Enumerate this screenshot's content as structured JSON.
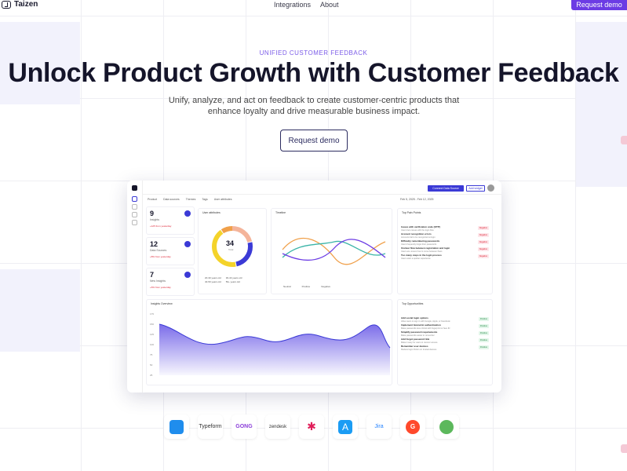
{
  "nav": {
    "brand": "Taizen",
    "links": [
      "Integrations",
      "About"
    ],
    "cta": "Request demo"
  },
  "hero": {
    "eyebrow": "UNIFIED CUSTOMER FEEDBACK",
    "title": "Unlock Product Growth with Customer Feedback",
    "subtitle": "Unify, analyze, and act on feedback to create customer-centric products that enhance loyalty and drive measurable business impact.",
    "cta": "Request demo"
  },
  "dashboard": {
    "connect_label": "Connect Data Source",
    "add_widget_label": "Add widget",
    "filters": [
      "Product",
      "Data sources",
      "Themes",
      "Tags",
      "User attributes"
    ],
    "date_range": "Feb 5, 2025 - Feb 12, 2025",
    "stats": [
      {
        "value": "9",
        "label": "Insights",
        "delta": "+125 from yesterday"
      },
      {
        "value": "12",
        "label": "Data Sources",
        "delta": "+8% from yesterday"
      },
      {
        "value": "7",
        "label": "New Insights",
        "delta": "+6% from yesterday"
      }
    ],
    "user_attributes": {
      "title": "User attributes",
      "center_value": "34",
      "center_label": "Total",
      "legend": [
        "20-30 years old",
        "30-40 years old",
        "40-50 years old",
        "50+ years old"
      ]
    },
    "timeline": {
      "title": "Timeline",
      "legend": [
        "Neutral",
        "Positive",
        "Negative"
      ]
    },
    "pain_points": {
      "title": "Top Pain Points",
      "items": [
        {
          "title": "Issues with verification code (OTP)",
          "desc": "Users face issues with the login flow"
        },
        {
          "title": "Account recognition errors",
          "desc": "Accounts fail to be recognized at login"
        },
        {
          "title": "Difficulty remembering passwords",
          "desc": "Users frequently forget their passwords"
        },
        {
          "title": "Unclear flow between registration and login",
          "desc": "Users are unsure how to move between flows"
        },
        {
          "title": "Too many steps in the login process",
          "desc": "Users want a quicker experience"
        }
      ],
      "tag": "Negative"
    },
    "insights_overview": {
      "title": "Insights Overview",
      "y_ticks": [
        "175",
        "150",
        "125",
        "100",
        "75",
        "50",
        "25"
      ]
    },
    "opportunities": {
      "title": "Top Opportunities",
      "items": [
        {
          "title": "Add social login options",
          "desc": "Allow users to sign in with Google, Apple, or Facebook"
        },
        {
          "title": "Implement biometric authentication",
          "desc": "Make passwords less critical with fingerprint or face ID"
        },
        {
          "title": "Simplify password requirements",
          "desc": "Make passwords easier to remember"
        },
        {
          "title": "Add forgot password link",
          "desc": "Make it easy for users to recover access"
        },
        {
          "title": "Remember user devices",
          "desc": "Reduce login friction on trusted devices"
        }
      ],
      "tag": "Positive"
    }
  },
  "integrations": [
    "Intercom",
    "Typeform",
    "GONG",
    "zendesk",
    "Slack",
    "App Store",
    "Jira",
    "G2",
    "Feedback"
  ]
}
